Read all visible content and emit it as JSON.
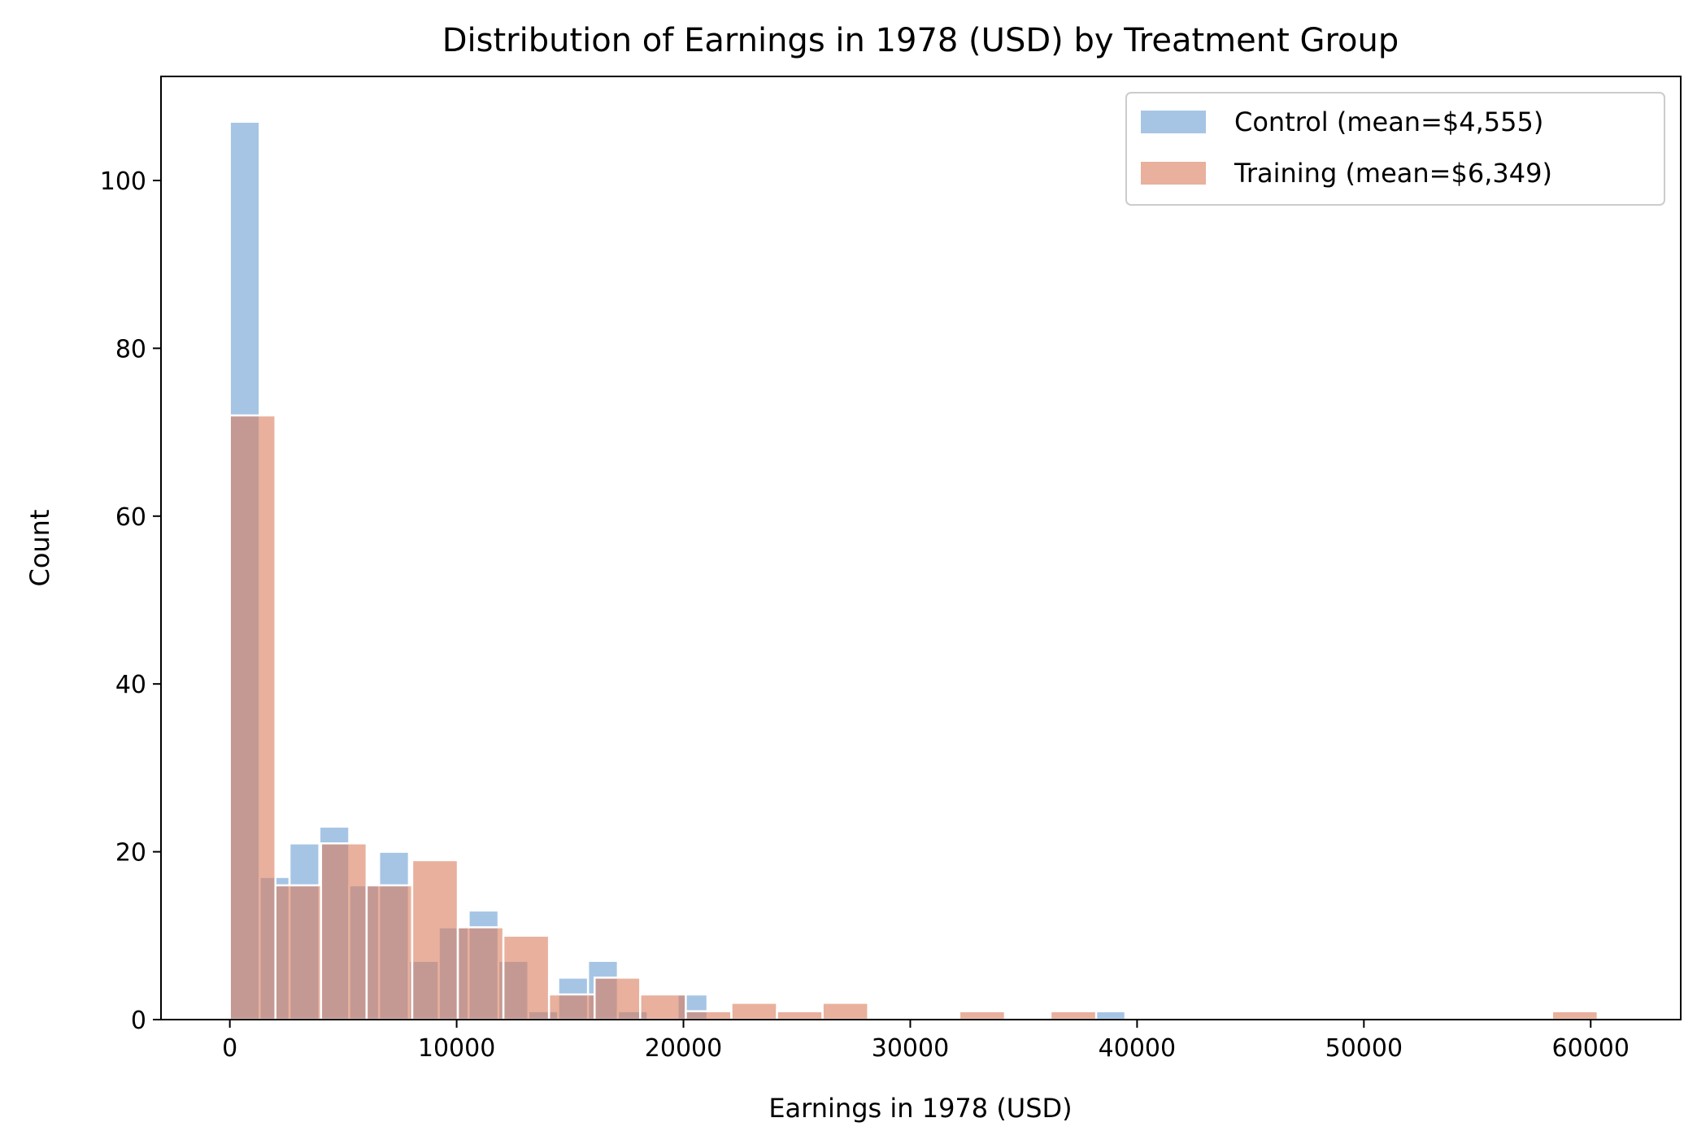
{
  "chart_data": {
    "type": "bar",
    "subtype": "overlaid-histogram",
    "title": "Distribution of Earnings in 1978 (USD) by Treatment Group",
    "xlabel": "Earnings in 1978 (USD)",
    "ylabel": "Count",
    "xlim": [
      -3035,
      63970
    ],
    "ylim": [
      0,
      112.4
    ],
    "xticks": [
      0,
      10000,
      20000,
      30000,
      40000,
      50000,
      60000
    ],
    "yticks": [
      0,
      20,
      40,
      60,
      80,
      100
    ],
    "grid": false,
    "legend_position": "top-right",
    "series": [
      {
        "name": "Control (mean=$4,555)",
        "color": "#6b9fd4",
        "bin_start": 0,
        "bin_width": 1316.1,
        "counts": [
          107,
          17,
          21,
          23,
          16,
          20,
          7,
          11,
          13,
          7,
          1,
          5,
          7,
          1,
          0,
          3,
          0,
          0,
          0,
          0,
          0,
          0,
          0,
          0,
          0,
          0,
          0,
          0,
          0,
          1
        ]
      },
      {
        "name": "Training (mean=$6,349)",
        "color": "#d97b5c",
        "bin_start": 0,
        "bin_width": 2010.3,
        "counts": [
          72,
          16,
          21,
          16,
          19,
          11,
          10,
          3,
          5,
          3,
          1,
          2,
          1,
          2,
          0,
          0,
          1,
          0,
          1,
          0,
          0,
          0,
          0,
          0,
          0,
          0,
          0,
          0,
          0,
          1
        ]
      }
    ]
  }
}
